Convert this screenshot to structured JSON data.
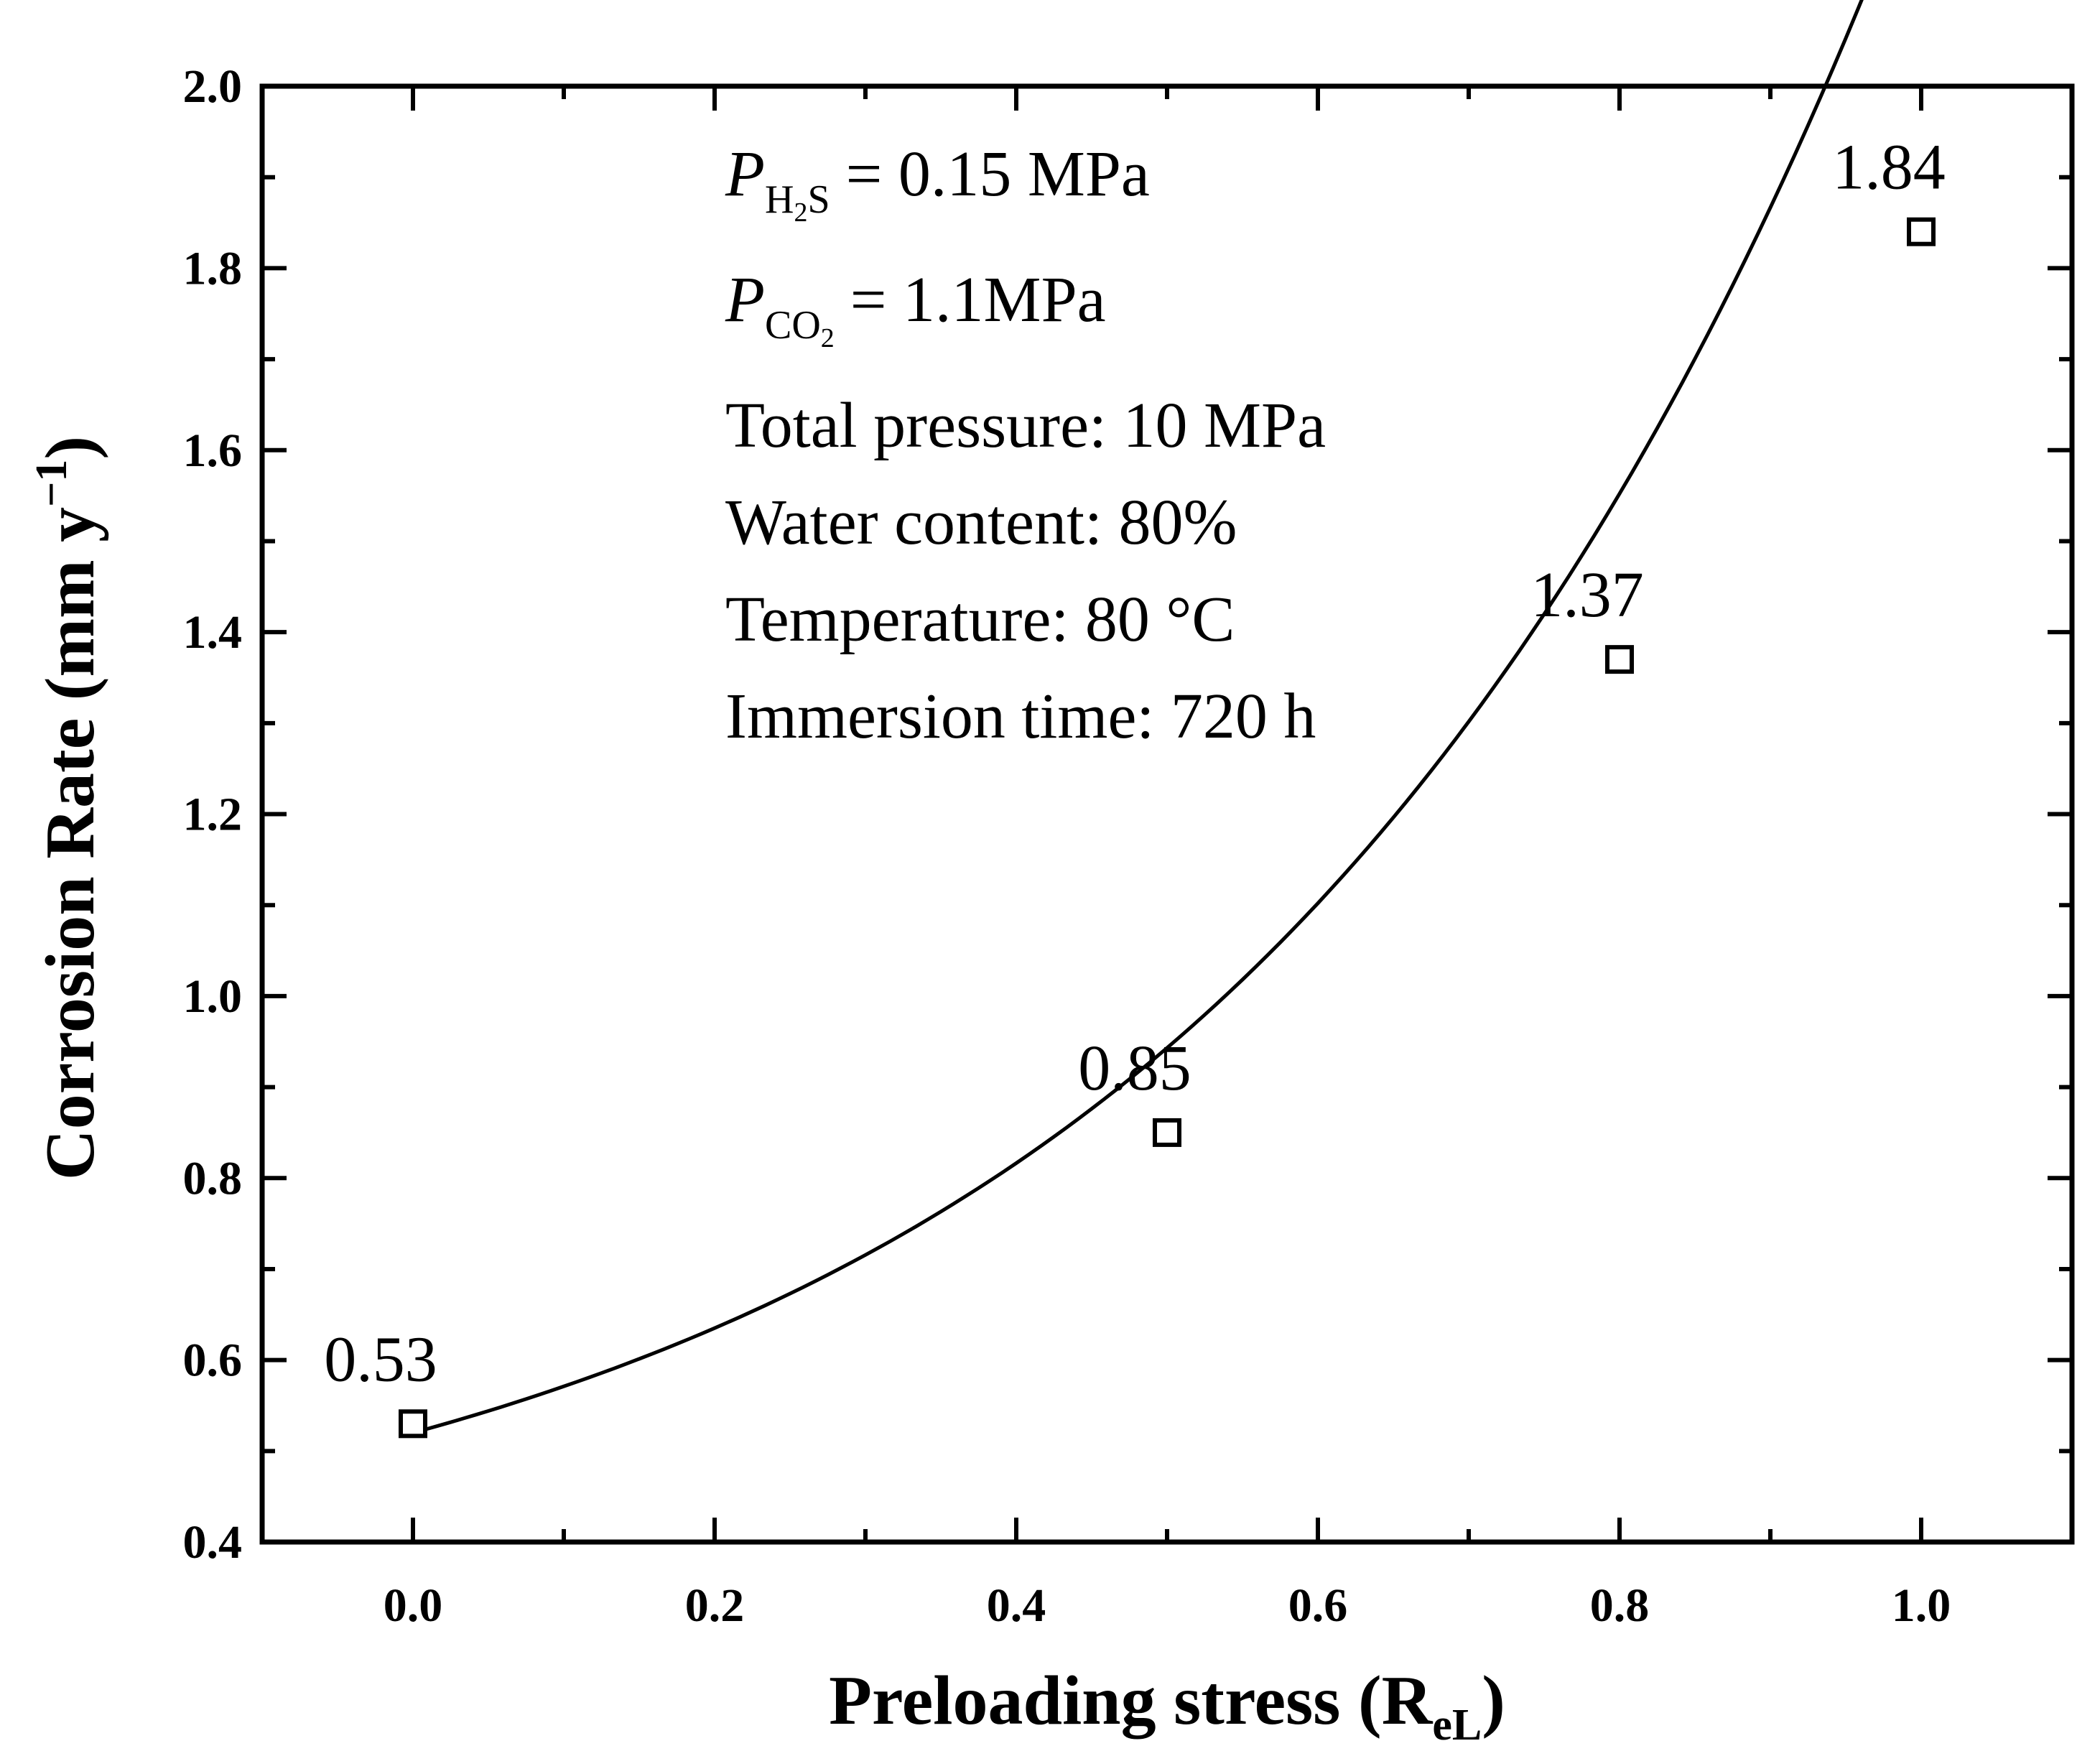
{
  "chart_data": {
    "type": "scatter",
    "xlabel": "Preloading stress (R",
    "xlabel_sub": "eL",
    "xlabel_close": ")",
    "ylabel": "Corrosion Rate (mm y",
    "ylabel_sup": "−1",
    "ylabel_close": ")",
    "xlim": [
      -0.1,
      1.1
    ],
    "ylim": [
      0.4,
      2.0
    ],
    "xticks": [
      0.0,
      0.2,
      0.4,
      0.6,
      0.8,
      1.0
    ],
    "xtick_labels": [
      "0.0",
      "0.2",
      "0.4",
      "0.6",
      "0.8",
      "1.0"
    ],
    "yticks": [
      0.4,
      0.6,
      0.8,
      1.0,
      1.2,
      1.4,
      1.6,
      1.8,
      2.0
    ],
    "ytick_labels": [
      "0.4",
      "0.6",
      "0.8",
      "1.0",
      "1.2",
      "1.4",
      "1.6",
      "1.8",
      "2.0"
    ],
    "series": [
      {
        "name": "Corrosion rate",
        "marker": "open-square",
        "x": [
          0.0,
          0.5,
          0.8,
          1.0
        ],
        "y": [
          0.53,
          0.85,
          1.37,
          1.84
        ],
        "labels": [
          "0.53",
          "0.85",
          "1.37",
          "1.84"
        ]
      }
    ],
    "fit_curve": {
      "type": "exponential",
      "y0": 0.32,
      "A": 0.2,
      "t": 0.44
    },
    "annotations": {
      "p_h2s": {
        "symbol": "P",
        "sub": "H",
        "sub_num": "2",
        "sub_tail": "S",
        "value": "= 0.15 MPa"
      },
      "p_co2": {
        "symbol": "P",
        "sub": "CO",
        "sub_num": "2",
        "value": "= 1.1MPa"
      },
      "lines": [
        "Total pressure: 10 MPa",
        "Water content: 80%",
        "Temperature: 80 °C",
        "Immersion time: 720 h"
      ]
    },
    "grid": false,
    "legend": "none"
  }
}
